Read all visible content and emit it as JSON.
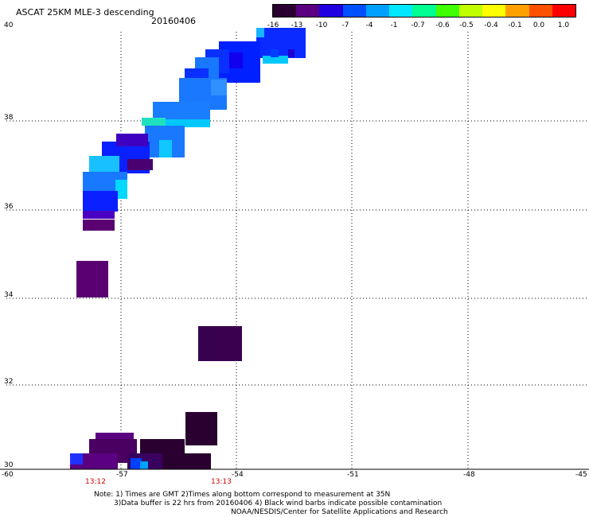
{
  "title": "ASCAT 25KM MLE-3 descending",
  "date": "20160406",
  "colorbar": {
    "labels": [
      "-16",
      "-13",
      "-10",
      "-7",
      "-4",
      "-1",
      "-0.7",
      "-0.6",
      "-0.5",
      "-0.4",
      "-0.1",
      "0.0",
      "1.0"
    ],
    "colors": [
      "#2a0030",
      "#5a0080",
      "#2000e0",
      "#0050ff",
      "#00a0ff",
      "#00e8ff",
      "#00ff90",
      "#40ff00",
      "#c0ff00",
      "#ffff00",
      "#ffa000",
      "#ff5000",
      "#ff0000"
    ]
  },
  "map": {
    "lat_labels": [
      "40",
      "38",
      "36",
      "34",
      "32",
      "30"
    ],
    "lon_labels": [
      "-60",
      "-57",
      "-54",
      "-51",
      "-48",
      "-45"
    ],
    "time_labels": [
      "13:12",
      "13:13"
    ]
  },
  "notes": {
    "line1": "Note: 1) Times are GMT 2)Times along bottom correspond to measurement at 35N",
    "line2": "3)Data buffer is 22 hrs from 20160406 4) Black wind barbs indicate possible contamination",
    "line3": "NOAA/NESDIS/Center for Satellite Applications and Research"
  }
}
